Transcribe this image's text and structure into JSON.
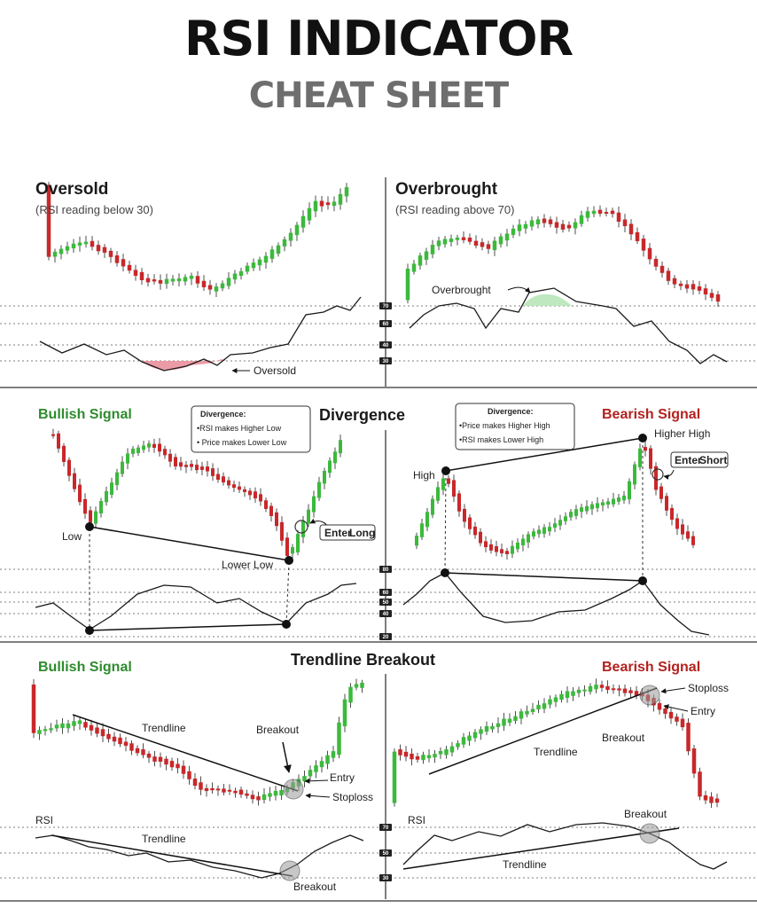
{
  "title": "RSI INDICATOR",
  "subtitle": "CHEAT SHEET",
  "colors": {
    "bull": "#3cb93c",
    "bear": "#c8282a",
    "grid": "#555555",
    "oversold_fill": "#e98a96",
    "overbought_fill": "#b9e6b9"
  },
  "sections": {
    "oversold": {
      "heading": "Oversold",
      "sub": "(RSI reading below 30)",
      "annotation": "Oversold"
    },
    "overbought": {
      "heading": "Overbrought",
      "sub": "(RSI reading above 70)",
      "annotation": "Overbrought"
    },
    "divergence": {
      "heading": "Divergence",
      "bullish": {
        "heading": "Bullish Signal",
        "box_title": "Divergence:",
        "box_line1": "•RSI makes Higher Low",
        "box_line2": "• Price makes Lower Low",
        "low": "Low",
        "lower_low": "Lower Low",
        "enter_prefix": "Enter",
        "enter_word": "Long"
      },
      "bearish": {
        "heading": "Bearish Signal",
        "box_title": "Divergence:",
        "box_line1": "•Price makes Higher High",
        "box_line2": "•RSI makes Lower High",
        "high": "High",
        "higher_high": "Higher High",
        "enter_prefix": "Enter",
        "enter_word": "Short"
      }
    },
    "trendline": {
      "heading": "Trendline Breakout",
      "bullish": {
        "heading": "Bullish Signal",
        "trendline": "Trendline",
        "breakout": "Breakout",
        "entry": "Entry",
        "stoploss": "Stoploss",
        "rsi": "RSI",
        "rsi_trendline": "Trendline",
        "rsi_breakout": "Breakout"
      },
      "bearish": {
        "heading": "Bearish Signal",
        "trendline": "Trendline",
        "breakout": "Breakout",
        "entry": "Entry",
        "stoploss": "Stoploss",
        "rsi": "RSI",
        "rsi_trendline": "Trendline",
        "rsi_breakout": "Breakout"
      }
    }
  },
  "rsi_levels": {
    "oversold_panel": [
      "70",
      "60",
      "40",
      "30"
    ],
    "divergence_panel": [
      "80",
      "60",
      "50",
      "40",
      "20"
    ],
    "trendline_panel": [
      "70",
      "50",
      "30"
    ]
  }
}
